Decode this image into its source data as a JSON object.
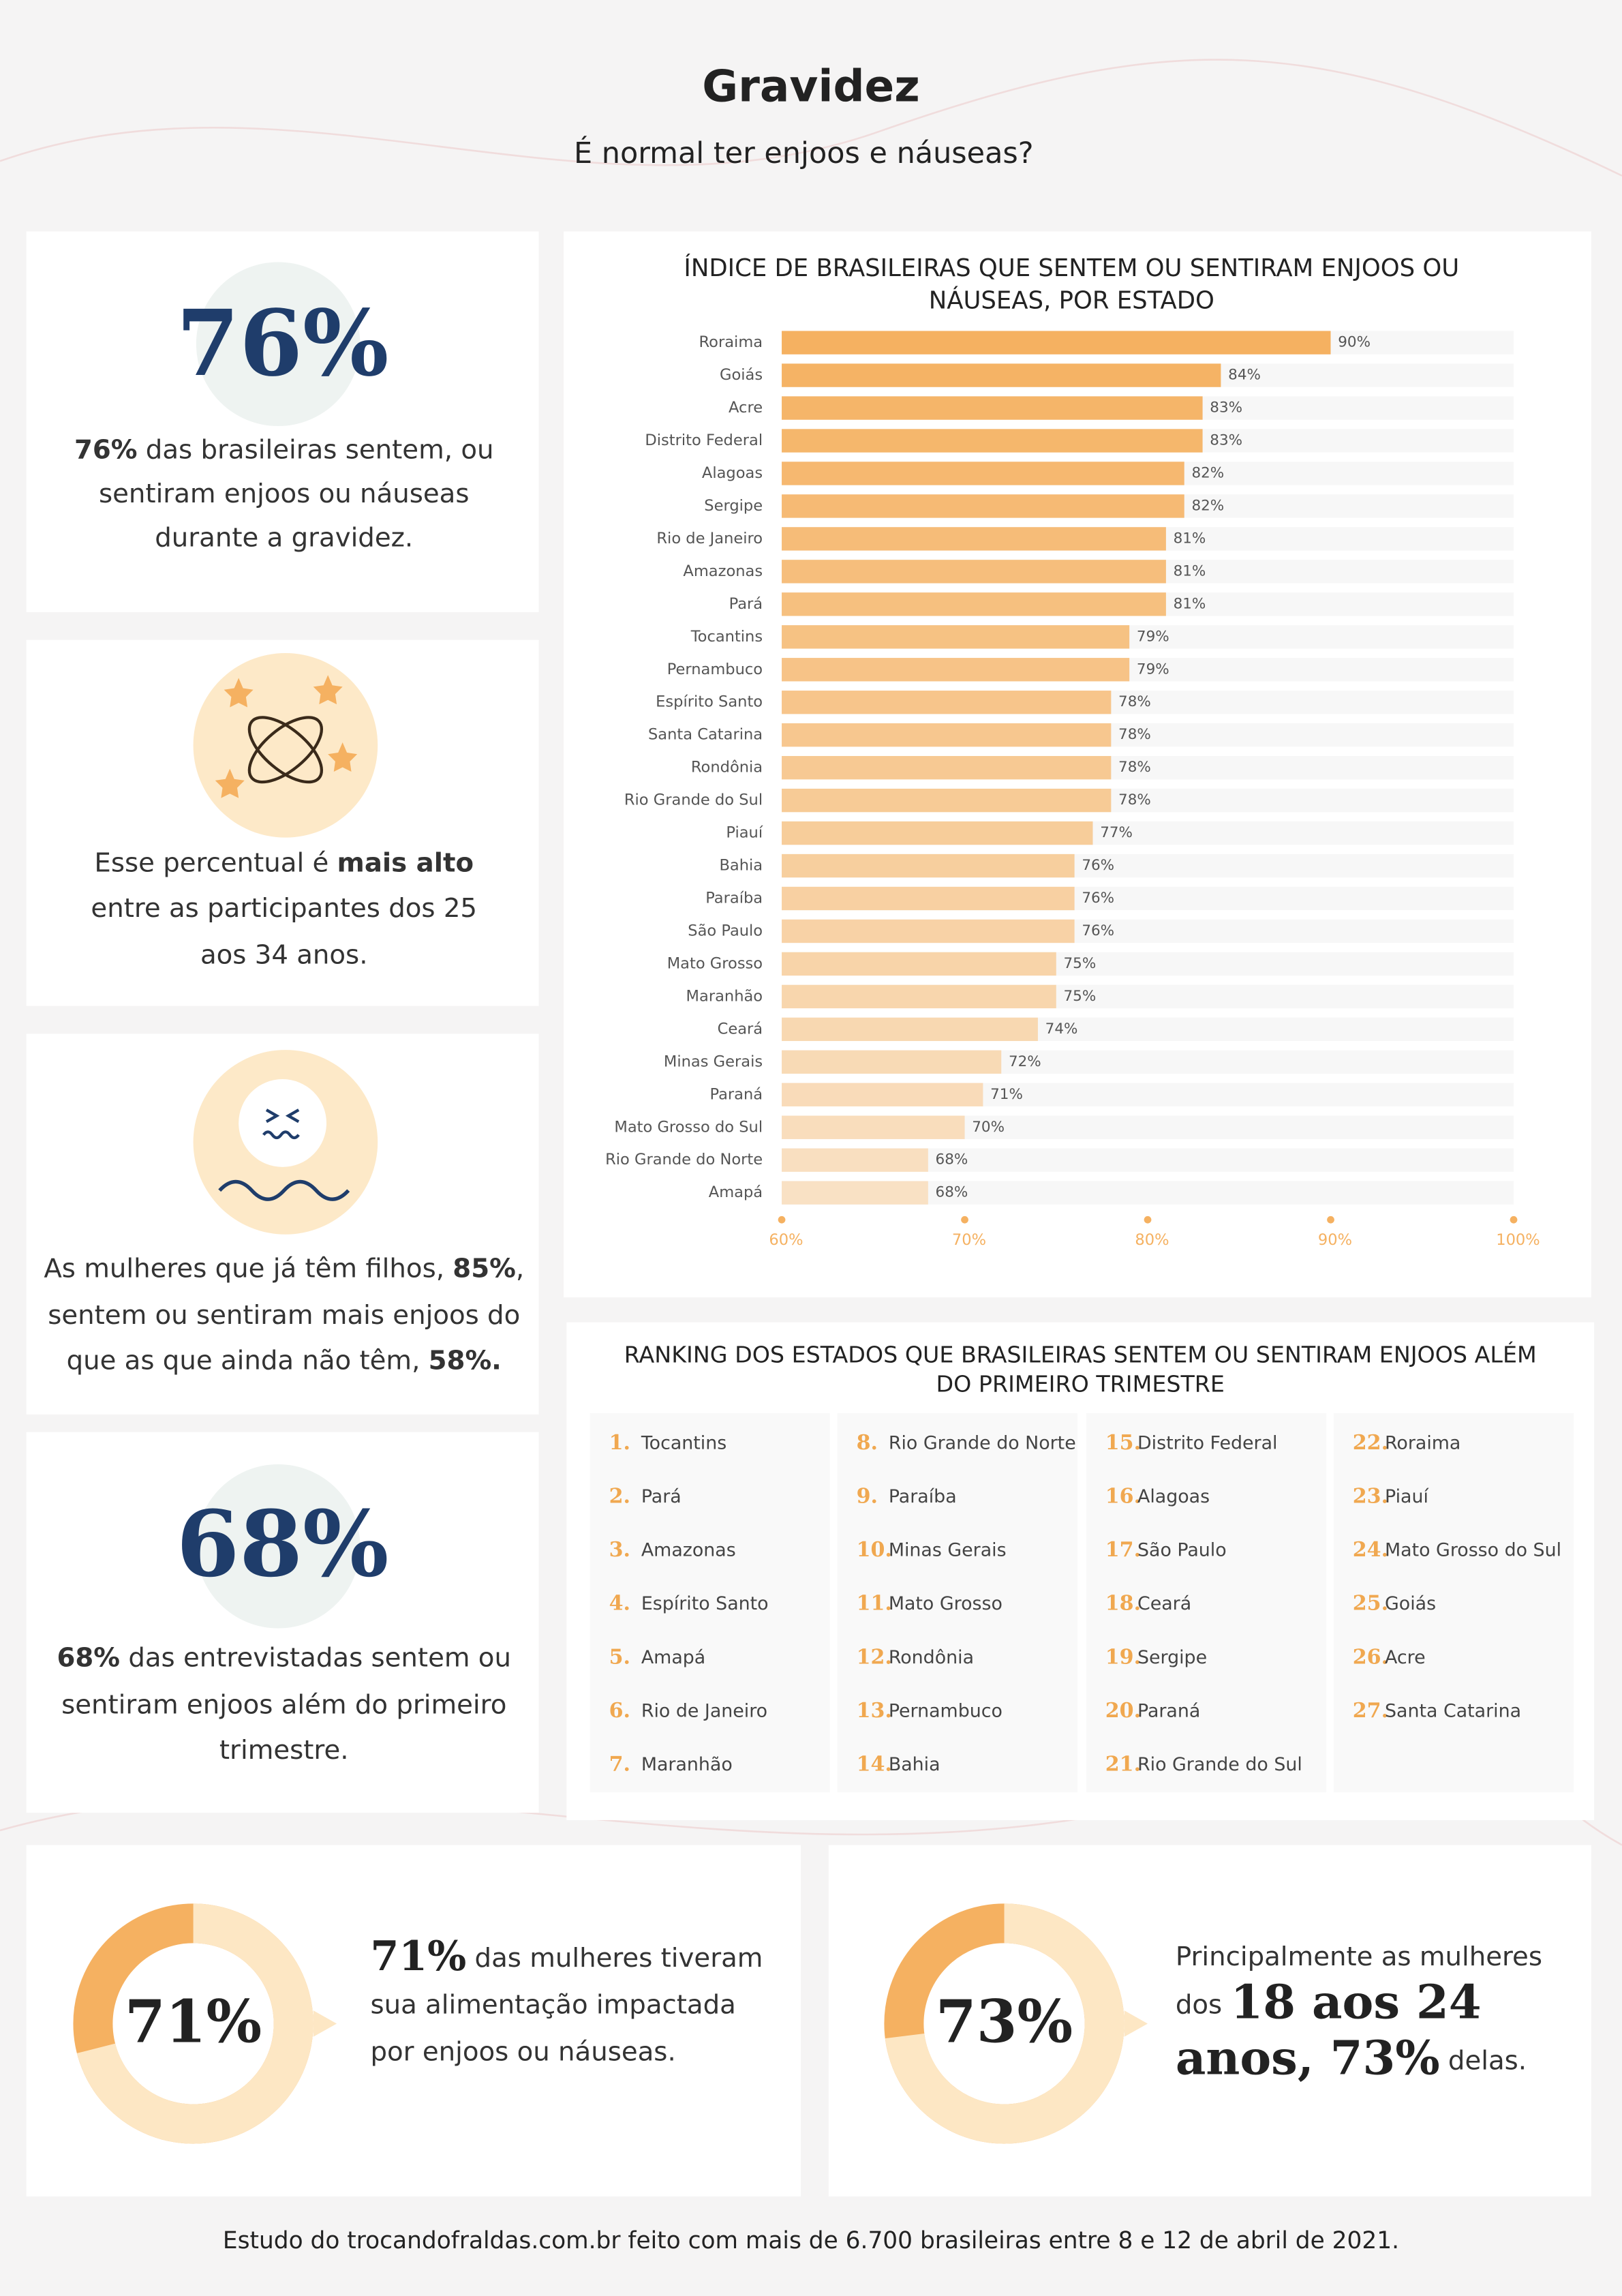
{
  "header": {
    "title": "Gravidez",
    "subtitle": "É normal ter enjoos e náuseas?"
  },
  "cards": [
    {
      "big": "76%",
      "lines": [
        [
          {
            "text": "76%",
            "bold": true
          },
          {
            "text": " das brasileiras sentem, ou"
          }
        ],
        [
          {
            "text": "sentiram enjoos ou náuseas"
          }
        ],
        [
          {
            "text": "durante a gravidez."
          }
        ]
      ]
    },
    {
      "lines": [
        [
          {
            "text": "Esse percentual é "
          },
          {
            "text": "mais alto",
            "bold": true
          }
        ],
        [
          {
            "text": "entre as participantes dos 25"
          }
        ],
        [
          {
            "text": "aos 34 anos."
          }
        ]
      ]
    },
    {
      "lines": [
        [
          {
            "text": "As mulheres que já têm filhos, "
          },
          {
            "text": "85%",
            "bold": true
          },
          {
            "text": ","
          }
        ],
        [
          {
            "text": "sentem ou sentiram mais enjoos do"
          }
        ],
        [
          {
            "text": "que as que ainda não têm, "
          },
          {
            "text": "58%.",
            "bold": true
          }
        ]
      ]
    },
    {
      "big": "68%",
      "lines": [
        [
          {
            "text": "68%",
            "bold": true
          },
          {
            "text": " das entrevistadas sentem ou"
          }
        ],
        [
          {
            "text": "sentiram enjoos além do primeiro"
          }
        ],
        [
          {
            "text": "trimestre."
          }
        ]
      ]
    }
  ],
  "chart_data": {
    "type": "bar",
    "title": [
      "ÍNDICE DE BRASILEIRAS QUE SENTEM OU SENTIRAM ENJOOS OU",
      "NÁUSEAS, POR ESTADO"
    ],
    "categories": [
      "Roraima",
      "Goiás",
      "Acre",
      "Distrito Federal",
      "Alagoas",
      "Sergipe",
      "Rio de Janeiro",
      "Amazonas",
      "Pará",
      "Tocantins",
      "Pernambuco",
      "Espírito Santo",
      "Santa Catarina",
      "Rondônia",
      "Rio Grande do Sul",
      "Piauí",
      "Bahia",
      "Paraíba",
      "São Paulo",
      "Mato Grosso",
      "Maranhão",
      "Ceará",
      "Minas Gerais",
      "Paraná",
      "Mato Grosso do Sul",
      "Rio Grande do Norte",
      "Amapá"
    ],
    "values": [
      90,
      84,
      83,
      83,
      82,
      82,
      81,
      81,
      81,
      79,
      79,
      78,
      78,
      78,
      78,
      77,
      76,
      76,
      76,
      75,
      75,
      74,
      72,
      71,
      70,
      68,
      68
    ],
    "value_labels": [
      "90%",
      "84%",
      "83%",
      "83%",
      "82%",
      "82%",
      "81%",
      "81%",
      "81%",
      "79%",
      "79%",
      "78%",
      "78%",
      "78%",
      "78%",
      "77%",
      "76%",
      "76%",
      "76%",
      "75%",
      "75%",
      "74%",
      "72%",
      "71%",
      "70%",
      "68%",
      "68%"
    ],
    "xlim": [
      60,
      100
    ],
    "xticks": [
      {
        "value": 60,
        "label": "60%"
      },
      {
        "value": 70,
        "label": "70%"
      },
      {
        "value": 80,
        "label": "80%"
      },
      {
        "value": 90,
        "label": "90%"
      },
      {
        "value": 100,
        "label": "100%"
      }
    ],
    "color_start": "#f5b161",
    "color_end": "#f9e1c4"
  },
  "ranking": {
    "title": [
      "RANKING DOS ESTADOS QUE BRASILEIRAS SENTEM OU SENTIRAM ENJOOS ALÉM",
      "DO PRIMEIRO TRIMESTRE"
    ],
    "items": [
      {
        "rank": "1.",
        "name": "Tocantins"
      },
      {
        "rank": "2.",
        "name": "Pará"
      },
      {
        "rank": "3.",
        "name": "Amazonas"
      },
      {
        "rank": "4.",
        "name": "Espírito Santo"
      },
      {
        "rank": "5.",
        "name": "Amapá"
      },
      {
        "rank": "6.",
        "name": "Rio de Janeiro"
      },
      {
        "rank": "7.",
        "name": "Maranhão"
      },
      {
        "rank": "8.",
        "name": "Rio Grande do Norte"
      },
      {
        "rank": "9.",
        "name": "Paraíba"
      },
      {
        "rank": "10.",
        "name": "Minas Gerais"
      },
      {
        "rank": "11.",
        "name": "Mato Grosso"
      },
      {
        "rank": "12.",
        "name": "Rondônia"
      },
      {
        "rank": "13.",
        "name": "Pernambuco"
      },
      {
        "rank": "14.",
        "name": "Bahia"
      },
      {
        "rank": "15.",
        "name": "Distrito Federal"
      },
      {
        "rank": "16.",
        "name": "Alagoas"
      },
      {
        "rank": "17.",
        "name": "São Paulo"
      },
      {
        "rank": "18.",
        "name": "Ceará"
      },
      {
        "rank": "19.",
        "name": "Sergipe"
      },
      {
        "rank": "20.",
        "name": "Paraná"
      },
      {
        "rank": "21.",
        "name": "Rio Grande do Sul"
      },
      {
        "rank": "22.",
        "name": "Roraima"
      },
      {
        "rank": "23.",
        "name": "Piauí"
      },
      {
        "rank": "24.",
        "name": "Mato Grosso do Sul"
      },
      {
        "rank": "25.",
        "name": "Goiás"
      },
      {
        "rank": "26.",
        "name": "Acre"
      },
      {
        "rank": "27.",
        "name": "Santa Catarina"
      }
    ]
  },
  "donuts": [
    {
      "value": 71,
      "label": "71%",
      "lines": [
        [
          {
            "text": "71%",
            "serif": true
          },
          {
            "text": " das mulheres tiveram"
          }
        ],
        [
          {
            "text": "sua alimentação impactada"
          }
        ],
        [
          {
            "text": "por enjoos ou náuseas."
          }
        ]
      ]
    },
    {
      "value": 73,
      "label": "73%",
      "lines": [
        [
          {
            "text": "Principalmente as mulheres"
          }
        ],
        [
          {
            "text": "dos "
          },
          {
            "text": "18 aos 24",
            "serif": true
          }
        ],
        [
          {
            "text": "anos, 73%",
            "serif": true
          },
          {
            "text": " delas."
          }
        ]
      ]
    }
  ],
  "footer": "Estudo do trocandofraldas.com.br feito com mais de 6.700 brasileiras entre 8 e 12 de abril de 2021."
}
